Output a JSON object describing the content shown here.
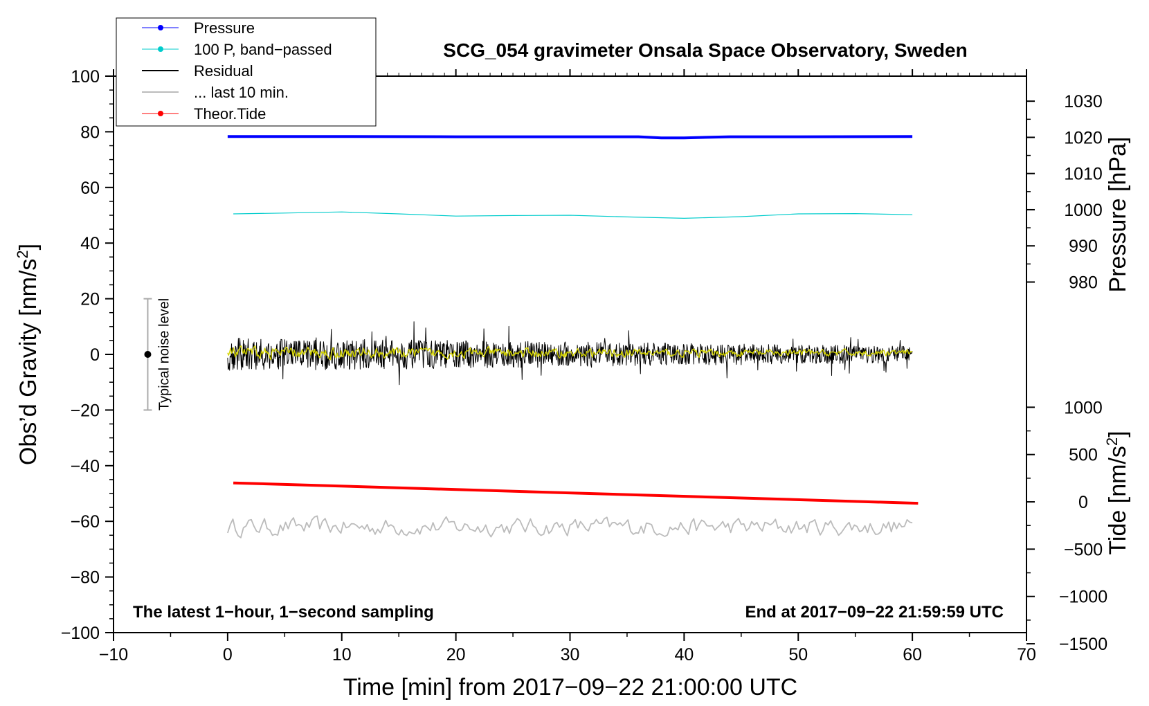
{
  "chart_data": {
    "type": "line",
    "title": "SCG_054 gravimeter Onsala Space Observatory, Sweden",
    "xlabel": "Time [min] from 2017−09−22 21:00:00 UTC",
    "ylabel": "Obs’d Gravity [nm/s",
    "ylabel_sup": "2",
    "ylabel_close": "]",
    "right_ylabel_pressure": "Pressure [hPa]",
    "right_ylabel_tide": "Tide [nm/s",
    "right_ylabel_tide_sup": "2",
    "right_ylabel_tide_close": "]",
    "xlim": [
      -10,
      70
    ],
    "ylim": [
      -100,
      100
    ],
    "x_ticks": [
      -10,
      0,
      10,
      20,
      30,
      40,
      50,
      60,
      70
    ],
    "x_tick_labels": [
      "−10",
      "0",
      "10",
      "20",
      "30",
      "40",
      "50",
      "60",
      "70"
    ],
    "y_ticks": [
      -100,
      -80,
      -60,
      -40,
      -20,
      0,
      20,
      40,
      60,
      80,
      100
    ],
    "y_tick_labels": [
      "−100",
      "−80",
      "−60",
      "−40",
      "−20",
      "0",
      "20",
      "40",
      "60",
      "80",
      "100"
    ],
    "pressure_axis": {
      "gravity_per_hpa": 1.3,
      "offset_hpa": 960,
      "ticks": [
        980,
        990,
        1000,
        1010,
        1020,
        1030
      ],
      "tick_labels": [
        "980",
        "990",
        "1000",
        "1010",
        "1020",
        "1030"
      ]
    },
    "tide_axis": {
      "gravity_per_unit": 0.034,
      "offset_gravity": -53,
      "ticks": [
        -1500,
        -1000,
        -500,
        0,
        500,
        1000
      ],
      "tick_labels": [
        "−1500",
        "−1000",
        "−500",
        "0",
        "500",
        "1000"
      ]
    },
    "series": [
      {
        "name": "Pressure",
        "color": "#0000ff",
        "style": "thick",
        "x": [
          0,
          10,
          20,
          30,
          36,
          38,
          40,
          42,
          44,
          50,
          60
        ],
        "y": [
          78.3,
          78.3,
          78.2,
          78.2,
          78.2,
          77.8,
          77.8,
          78.0,
          78.2,
          78.2,
          78.3
        ]
      },
      {
        "name": "100 P, band−passed",
        "color": "#00cccc",
        "style": "thin",
        "x": [
          0.5,
          5,
          10,
          15,
          20,
          25,
          30,
          35,
          40,
          45,
          50,
          55,
          60
        ],
        "y": [
          50.5,
          50.8,
          51.2,
          50.5,
          49.7,
          49.9,
          50.0,
          49.4,
          48.9,
          49.5,
          50.5,
          50.6,
          50.2
        ]
      },
      {
        "name": "Residual",
        "color": "#000000",
        "style": "noise",
        "x_range": [
          0,
          60
        ],
        "center": 0,
        "amplitude_start": 6,
        "amplitude_end": 3
      },
      {
        "name": "... last 10 min.",
        "color": "#bbbbbb",
        "style": "noise-smooth",
        "x_range": [
          0,
          60
        ],
        "center": -62,
        "amplitude_start": 3,
        "amplitude_end": 3
      },
      {
        "name": "Theor.Tide",
        "color": "#ff0000",
        "style": "thick",
        "x": [
          0.5,
          60.5
        ],
        "y": [
          -46.2,
          -53.5
        ]
      },
      {
        "name": "Residual (smoothed)",
        "color": "#d4d400",
        "style": "noise-smooth",
        "x_range": [
          0,
          60
        ],
        "center": 0.5,
        "amplitude_start": 2,
        "amplitude_end": 1
      }
    ],
    "legend": {
      "position": "top-left",
      "entries": [
        {
          "label": "Pressure",
          "color": "#0000ff",
          "marker": true
        },
        {
          "label": "100 P, band−passed",
          "color": "#00cccc",
          "marker": true
        },
        {
          "label": "Residual",
          "color": "#000000",
          "marker": false
        },
        {
          "label": "... last 10 min.",
          "color": "#bbbbbb",
          "marker": false
        },
        {
          "label": "Theor.Tide",
          "color": "#ff0000",
          "marker": true
        }
      ]
    },
    "noise_bar": {
      "x": -7,
      "center": 0,
      "half_range": 20,
      "label": "Typical noise level"
    },
    "annotations": {
      "bottom_left": "The latest 1−hour, 1−second sampling",
      "bottom_right": "End at 2017−09−22 21:59:59 UTC"
    }
  }
}
